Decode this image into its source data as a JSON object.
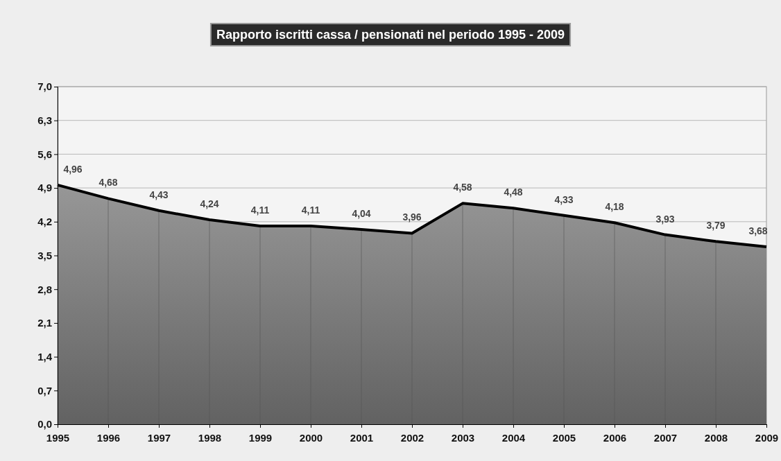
{
  "chart_data": {
    "type": "area",
    "title": "Rapporto iscritti cassa / pensionati nel periodo 1995 - 2009",
    "categories": [
      "1995",
      "1996",
      "1997",
      "1998",
      "1999",
      "2000",
      "2001",
      "2002",
      "2003",
      "2004",
      "2005",
      "2006",
      "2007",
      "2008",
      "2009"
    ],
    "values": [
      4.96,
      4.68,
      4.43,
      4.24,
      4.11,
      4.11,
      4.04,
      3.96,
      4.58,
      4.48,
      4.33,
      4.18,
      3.93,
      3.79,
      3.68
    ],
    "color": "#7a7a7a",
    "ylim": [
      0,
      7
    ],
    "yticks": [
      {
        "value": 0,
        "label": "0,0"
      },
      {
        "value": 0.7,
        "label": "0,7"
      },
      {
        "value": 1.4,
        "label": "1,4"
      },
      {
        "value": 2.1,
        "label": "2,1"
      },
      {
        "value": 2.8,
        "label": "2,8"
      },
      {
        "value": 3.5,
        "label": "3,5"
      },
      {
        "value": 4.2,
        "label": "4,2"
      },
      {
        "value": 4.9,
        "label": "4,9"
      },
      {
        "value": 5.6,
        "label": "5,6"
      },
      {
        "value": 6.3,
        "label": "6,3"
      },
      {
        "value": 7,
        "label": "7,0"
      }
    ],
    "value_labels": [
      "4,96",
      "4,68",
      "4,43",
      "4,24",
      "4,11",
      "4,11",
      "4,04",
      "3,96",
      "4,58",
      "4,48",
      "4,33",
      "4,18",
      "3,93",
      "3,79",
      "3,68"
    ],
    "grid": "y"
  }
}
